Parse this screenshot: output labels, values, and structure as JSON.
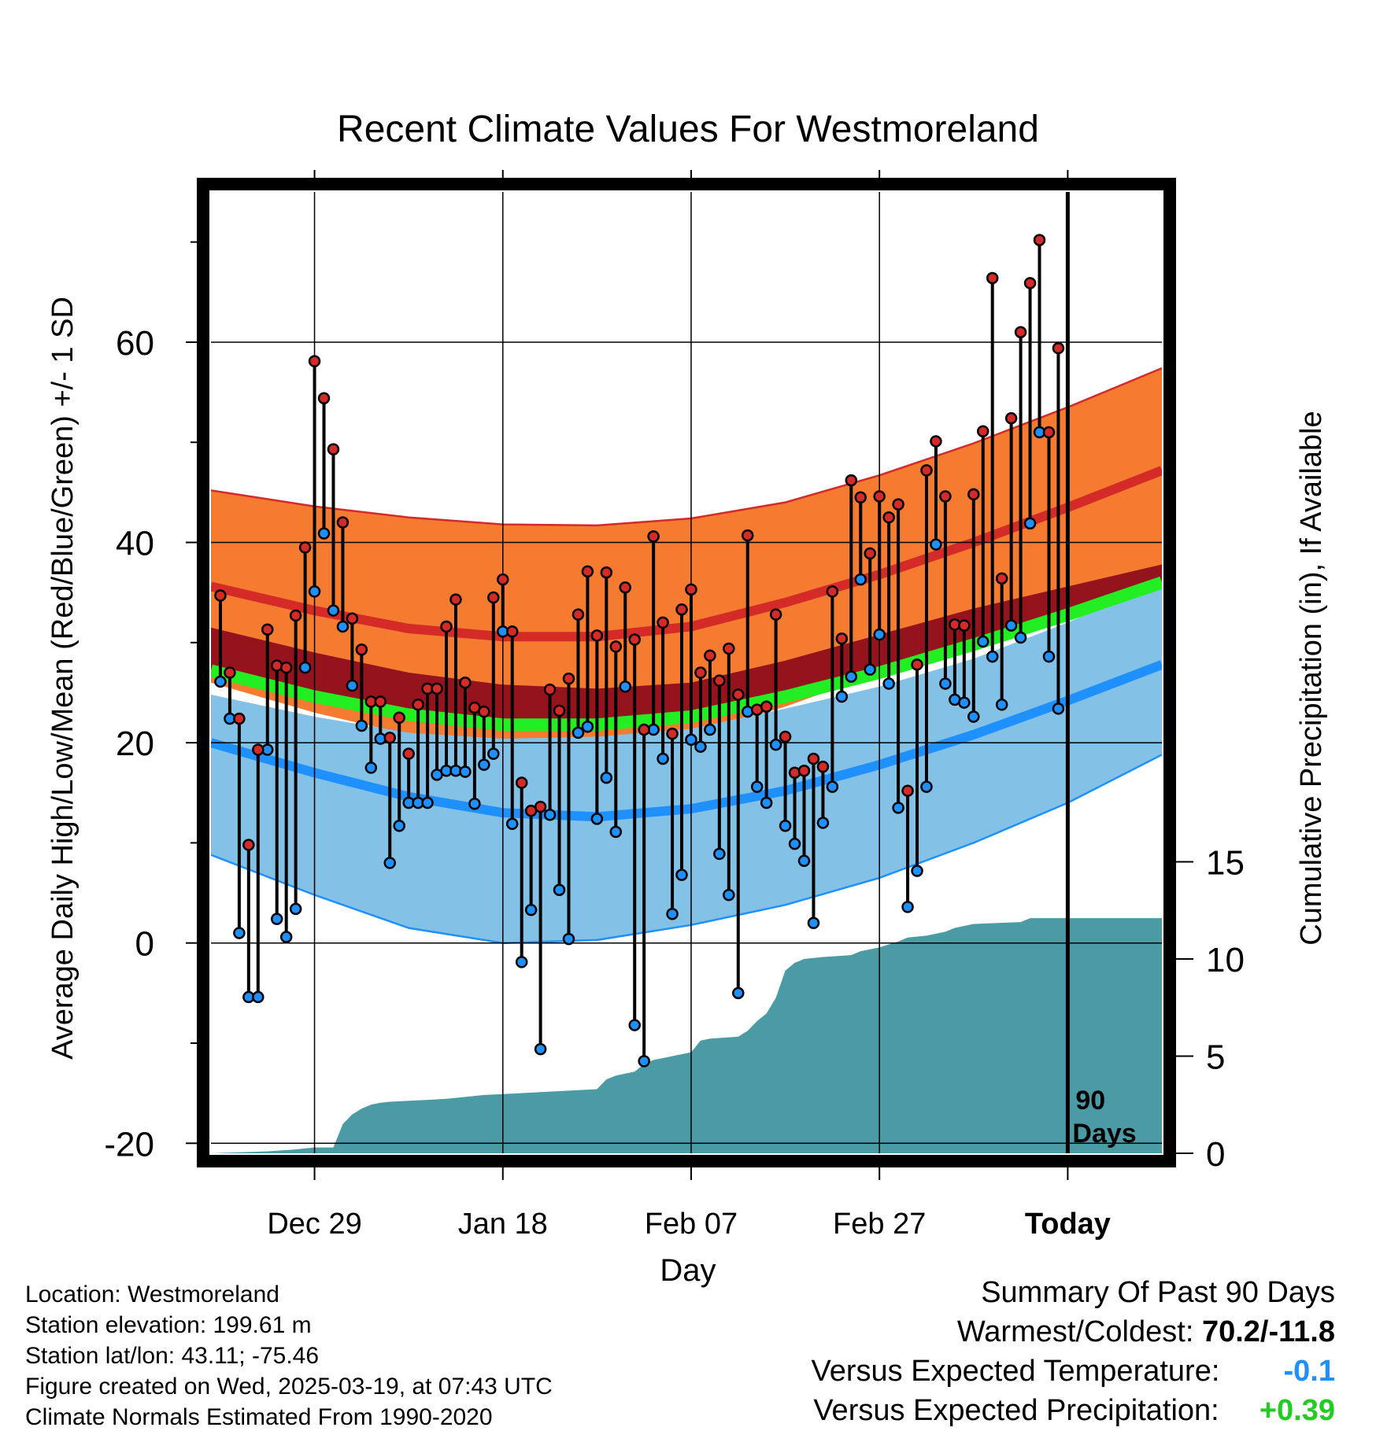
{
  "chart_data": {
    "type": "line",
    "title": "Recent Climate Values For Westmoreland",
    "xlabel": "Day",
    "ylabel_left": "Average Daily High/Low/Mean (Red/Blue/Green) +/- 1 SD",
    "ylabel_right": "Cumulative Precipitation (in), If Available",
    "x_tick_labels": [
      "Dec 29",
      "Jan 18",
      "Feb 07",
      "Feb 27",
      "Today"
    ],
    "x_tick_days": [
      10,
      30,
      50,
      70,
      90
    ],
    "x_range_days": [
      -1,
      100
    ],
    "y_left_ticks": [
      "60",
      "40",
      "20",
      "0",
      "-20"
    ],
    "y_left_tick_values": [
      60,
      40,
      20,
      0,
      -20
    ],
    "ylim_left": [
      -21,
      75
    ],
    "y_right_ticks": [
      "15",
      "10",
      "5",
      "0"
    ],
    "y_right_tick_values": [
      15,
      10,
      5,
      0
    ],
    "ylim_right": [
      0,
      50
    ],
    "today_marker_label": [
      "90",
      "Days"
    ],
    "grid": true,
    "colors": {
      "high_band": "#f47b30",
      "high_mean": "#d42a28",
      "mean_band": "#94131c",
      "mean_line": "#22ee22",
      "low_band": "#84c1e7",
      "low_mean": "#1e90ff",
      "precip": "#4a9ba6",
      "obs_high": "#d42a28",
      "obs_low": "#1e90ff"
    },
    "normals": {
      "days": [
        -1,
        10,
        20,
        30,
        40,
        50,
        60,
        70,
        80,
        90,
        100
      ],
      "high_upper": [
        45.2,
        43.6,
        42.5,
        41.8,
        41.7,
        42.4,
        44.0,
        46.7,
        49.9,
        53.5,
        57.4
      ],
      "high_mean": [
        35.6,
        33.2,
        31.4,
        30.6,
        30.6,
        31.6,
        34.0,
        36.8,
        40.0,
        43.5,
        47.2
      ],
      "high_lower": [
        26.0,
        23.0,
        20.8,
        19.5,
        19.6,
        20.8,
        23.6,
        27.0,
        30.5,
        33.6,
        36.5
      ],
      "mean_upper": [
        31.5,
        29.0,
        27.0,
        25.8,
        25.4,
        26.0,
        28.2,
        30.8,
        33.4,
        35.6,
        37.8
      ],
      "mean_line": [
        27.2,
        24.6,
        22.8,
        21.8,
        21.8,
        22.6,
        24.6,
        27.0,
        29.8,
        32.8,
        36.0
      ],
      "low_upper": [
        24.8,
        22.6,
        21.0,
        20.4,
        20.6,
        21.4,
        23.4,
        25.6,
        28.4,
        32.0,
        36.2
      ],
      "low_mean": [
        20.0,
        17.0,
        14.6,
        13.0,
        12.6,
        13.4,
        15.2,
        17.8,
        20.8,
        24.2,
        27.8
      ],
      "low_lower": [
        8.8,
        4.8,
        1.5,
        0.0,
        0.3,
        1.8,
        3.8,
        6.5,
        10.0,
        14.0,
        18.8
      ]
    },
    "series": [
      {
        "name": "High",
        "days": [
          0,
          1,
          2,
          3,
          4,
          5,
          6,
          7,
          8,
          9,
          10,
          11,
          12,
          13,
          14,
          15,
          16,
          17,
          18,
          19,
          20,
          21,
          22,
          23,
          24,
          25,
          26,
          27,
          28,
          29,
          30,
          31,
          32,
          33,
          34,
          35,
          36,
          37,
          38,
          39,
          40,
          41,
          42,
          43,
          44,
          45,
          46,
          47,
          48,
          49,
          50,
          51,
          52,
          53,
          54,
          55,
          56,
          57,
          58,
          59,
          60,
          61,
          62,
          63,
          64,
          65,
          66,
          67,
          68,
          69,
          70,
          71,
          72,
          73,
          74,
          75,
          76,
          77,
          78,
          79,
          80,
          81,
          82,
          83,
          84,
          85,
          86,
          87,
          88,
          89
        ],
        "values": [
          34.7,
          27.0,
          22.4,
          9.8,
          19.3,
          31.3,
          27.7,
          27.5,
          32.7,
          39.5,
          58.1,
          54.4,
          49.3,
          42.0,
          32.4,
          29.3,
          24.1,
          24.1,
          20.5,
          22.5,
          18.9,
          23.8,
          25.4,
          25.4,
          31.6,
          34.3,
          26.0,
          23.5,
          23.1,
          34.5,
          36.3,
          31.1,
          16.0,
          13.2,
          13.6,
          25.3,
          23.2,
          26.4,
          32.8,
          37.1,
          30.7,
          37.0,
          29.6,
          35.5,
          30.3,
          21.3,
          40.6,
          32.0,
          20.9,
          33.3,
          35.3,
          27.0,
          28.7,
          26.2,
          29.4,
          24.8,
          40.7,
          23.3,
          23.6,
          32.8,
          20.6,
          17.0,
          17.2,
          18.4,
          17.6,
          35.1,
          30.4,
          46.2,
          44.5,
          38.9,
          44.6,
          42.5,
          43.8,
          15.2,
          27.8,
          47.2,
          50.1,
          44.6,
          31.8,
          31.7,
          44.8,
          51.1,
          66.4,
          36.4,
          52.4,
          61.0,
          65.9,
          70.2,
          51.0,
          59.4
        ]
      },
      {
        "name": "Low",
        "days": [
          0,
          1,
          2,
          3,
          4,
          5,
          6,
          7,
          8,
          9,
          10,
          11,
          12,
          13,
          14,
          15,
          16,
          17,
          18,
          19,
          20,
          21,
          22,
          23,
          24,
          25,
          26,
          27,
          28,
          29,
          30,
          31,
          32,
          33,
          34,
          35,
          36,
          37,
          38,
          39,
          40,
          41,
          42,
          43,
          44,
          45,
          46,
          47,
          48,
          49,
          50,
          51,
          52,
          53,
          54,
          55,
          56,
          57,
          58,
          59,
          60,
          61,
          62,
          63,
          64,
          65,
          66,
          67,
          68,
          69,
          70,
          71,
          72,
          73,
          74,
          75,
          76,
          77,
          78,
          79,
          80,
          81,
          82,
          83,
          84,
          85,
          86,
          87,
          88,
          89
        ],
        "values": [
          26.1,
          22.4,
          1.0,
          -5.4,
          -5.4,
          19.3,
          2.4,
          0.6,
          3.4,
          27.5,
          35.1,
          40.9,
          33.2,
          31.6,
          25.7,
          21.7,
          17.5,
          20.4,
          8.0,
          11.7,
          14.0,
          14.0,
          14.0,
          16.8,
          17.2,
          17.2,
          17.1,
          13.9,
          17.8,
          18.9,
          31.1,
          11.9,
          -1.9,
          3.3,
          -10.6,
          12.8,
          5.3,
          0.4,
          21.0,
          21.6,
          12.4,
          16.5,
          11.1,
          25.6,
          -8.2,
          -11.8,
          21.3,
          18.4,
          2.9,
          6.8,
          20.3,
          19.6,
          21.3,
          8.9,
          4.8,
          -5.0,
          23.1,
          15.6,
          14.0,
          19.8,
          11.7,
          9.9,
          8.2,
          2.0,
          12.0,
          15.6,
          24.6,
          26.6,
          36.3,
          27.3,
          30.8,
          25.9,
          13.5,
          3.6,
          7.2,
          15.6,
          39.8,
          25.9,
          24.3,
          24.0,
          22.6,
          30.1,
          28.6,
          23.8,
          31.7,
          30.5,
          41.9,
          51.0,
          28.6,
          23.4
        ]
      },
      {
        "name": "Cumulative Precipitation",
        "days": [
          -1,
          5,
          8,
          10,
          12,
          12.5,
          13,
          14,
          15,
          16,
          17,
          18,
          20,
          22,
          24,
          26,
          28,
          30,
          34,
          38,
          40,
          41,
          42,
          43,
          44,
          45,
          46,
          47,
          48,
          50,
          51,
          52,
          55,
          56,
          57,
          58,
          59,
          60,
          60.5,
          61,
          62,
          64,
          67,
          68,
          69,
          70,
          72,
          73,
          75,
          76,
          77,
          78,
          80,
          85,
          86,
          100
        ],
        "values": [
          0,
          0.1,
          0.2,
          0.3,
          0.3,
          0.9,
          1.5,
          2.0,
          2.3,
          2.5,
          2.6,
          2.65,
          2.7,
          2.75,
          2.8,
          2.9,
          3.0,
          3.05,
          3.15,
          3.25,
          3.3,
          3.8,
          4.0,
          4.1,
          4.2,
          4.6,
          4.8,
          4.9,
          5.0,
          5.2,
          5.8,
          5.9,
          6.0,
          6.3,
          6.8,
          7.2,
          8.0,
          9.4,
          9.6,
          9.8,
          10.0,
          10.1,
          10.2,
          10.4,
          10.5,
          10.6,
          10.9,
          11.1,
          11.2,
          11.3,
          11.4,
          11.6,
          11.8,
          11.9,
          12.1,
          12.1
        ]
      }
    ]
  },
  "info": {
    "location": "Location: Westmoreland",
    "elevation": "Station elevation: 199.61 m",
    "latlon": "Station lat/lon: 43.11; -75.46",
    "created": "Figure created on Wed, 2025-03-19, at 07:43 UTC",
    "normals": "Climate Normals Estimated From 1990-2020"
  },
  "summary": {
    "title": "Summary Of Past 90 Days",
    "warm_cold_label": "Warmest/Coldest:",
    "warm_cold_value": "70.2/-11.8",
    "temp_label": "Versus Expected Temperature:",
    "temp_value": "-0.1",
    "precip_label": "Versus Expected Precipitation:",
    "precip_value": "+0.39"
  }
}
